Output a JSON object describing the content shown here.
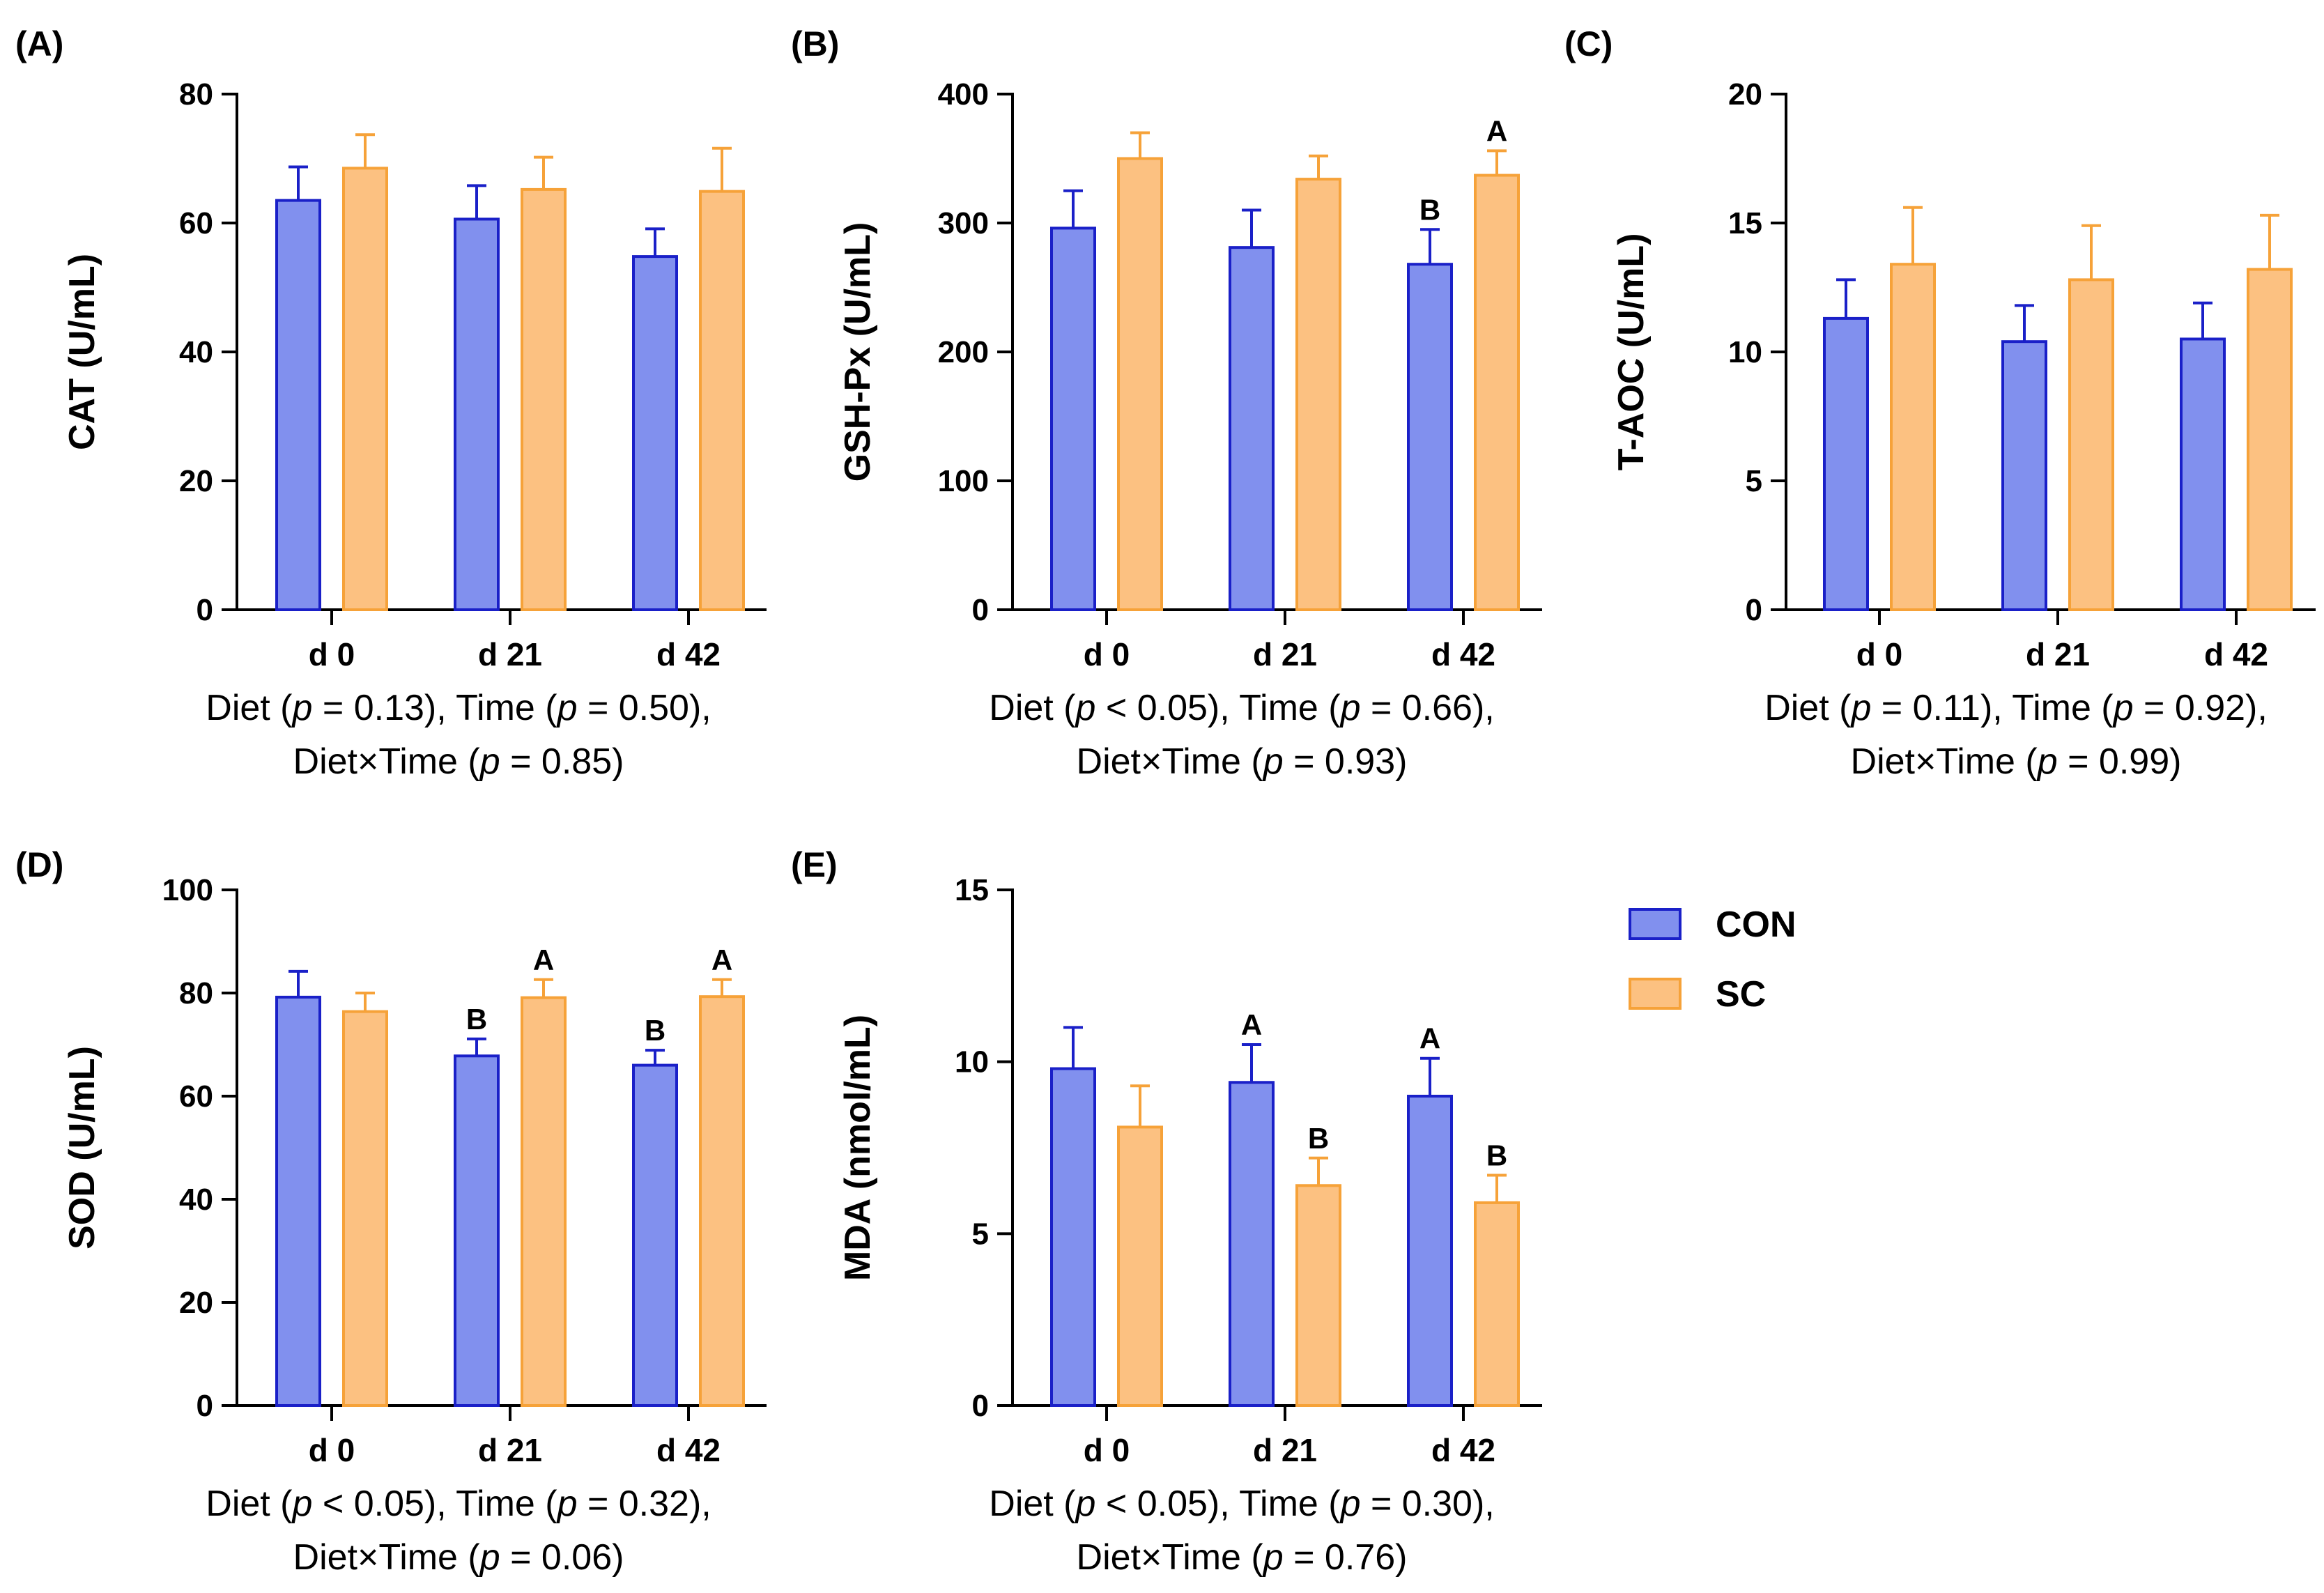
{
  "chart_data": [
    {
      "id": "A",
      "panel_label": "(A)",
      "type": "bar",
      "ylabel": "CAT (U/mL)",
      "ylim": [
        0,
        80
      ],
      "yticks": [
        0,
        20,
        40,
        60,
        80
      ],
      "categories": [
        "d 0",
        "d 21",
        "d 42"
      ],
      "series": [
        {
          "name": "CON",
          "values": [
            63.5,
            60.6,
            54.8
          ],
          "errors": [
            5.2,
            5.2,
            4.3
          ],
          "letters": [
            "",
            "",
            ""
          ]
        },
        {
          "name": "SC",
          "values": [
            68.5,
            65.2,
            64.9
          ],
          "errors": [
            5.2,
            5.0,
            6.7
          ],
          "letters": [
            "",
            "",
            ""
          ]
        }
      ],
      "note_line1": [
        "Diet (",
        "p",
        " = 0.13), Time (",
        "p",
        " = 0.50),"
      ],
      "note_line2": [
        "Diet×Time (",
        "p",
        " = 0.85)"
      ]
    },
    {
      "id": "B",
      "panel_label": "(B)",
      "type": "bar",
      "ylabel": "GSH-Px (U/mL)",
      "ylim": [
        0,
        400
      ],
      "yticks": [
        0,
        100,
        200,
        300,
        400
      ],
      "categories": [
        "d 0",
        "d 21",
        "d 42"
      ],
      "series": [
        {
          "name": "CON",
          "values": [
            296,
            281,
            268
          ],
          "errors": [
            29,
            29,
            27
          ],
          "letters": [
            "",
            "",
            "B"
          ]
        },
        {
          "name": "SC",
          "values": [
            350,
            334,
            337
          ],
          "errors": [
            20,
            18,
            19
          ],
          "letters": [
            "",
            "",
            "A"
          ]
        }
      ],
      "note_line1": [
        "Diet (",
        "p",
        " < 0.05), Time (",
        "p",
        " = 0.66),"
      ],
      "note_line2": [
        "Diet×Time (",
        "p",
        " = 0.93)"
      ]
    },
    {
      "id": "C",
      "panel_label": "(C)",
      "type": "bar",
      "ylabel": "T-AOC (U/mL)",
      "ylim": [
        0,
        20
      ],
      "yticks": [
        0,
        5,
        10,
        15,
        20
      ],
      "categories": [
        "d 0",
        "d 21",
        "d 42"
      ],
      "series": [
        {
          "name": "CON",
          "values": [
            11.3,
            10.4,
            10.5
          ],
          "errors": [
            1.5,
            1.4,
            1.4
          ],
          "letters": [
            "",
            "",
            ""
          ]
        },
        {
          "name": "SC",
          "values": [
            13.4,
            12.8,
            13.2
          ],
          "errors": [
            2.2,
            2.1,
            2.1
          ],
          "letters": [
            "",
            "",
            ""
          ]
        }
      ],
      "note_line1": [
        "Diet (",
        "p",
        " = 0.11), Time (",
        "p",
        " = 0.92),"
      ],
      "note_line2": [
        "Diet×Time (",
        "p",
        " = 0.99)"
      ]
    },
    {
      "id": "D",
      "panel_label": "(D)",
      "type": "bar",
      "ylabel": "SOD (U/mL)",
      "ylim": [
        0,
        100
      ],
      "yticks": [
        0,
        20,
        40,
        60,
        80,
        100
      ],
      "categories": [
        "d 0",
        "d 21",
        "d 42"
      ],
      "series": [
        {
          "name": "CON",
          "values": [
            79.2,
            67.8,
            66.0
          ],
          "errors": [
            5.0,
            3.3,
            2.9
          ],
          "letters": [
            "",
            "B",
            "B"
          ]
        },
        {
          "name": "SC",
          "values": [
            76.4,
            79.1,
            79.3
          ],
          "errors": [
            3.6,
            3.5,
            3.3
          ],
          "letters": [
            "",
            "A",
            "A"
          ]
        }
      ],
      "note_line1": [
        "Diet (",
        "p",
        " < 0.05), Time (",
        "p",
        " = 0.32),"
      ],
      "note_line2": [
        "Diet×Time (",
        "p",
        " = 0.06)"
      ]
    },
    {
      "id": "E",
      "panel_label": "(E)",
      "type": "bar",
      "ylabel": "MDA (nmol/mL)",
      "ylim": [
        0,
        15
      ],
      "yticks": [
        0,
        5,
        10,
        15
      ],
      "categories": [
        "d 0",
        "d 21",
        "d 42"
      ],
      "series": [
        {
          "name": "CON",
          "values": [
            9.8,
            9.4,
            9.0
          ],
          "errors": [
            1.2,
            1.1,
            1.1
          ],
          "letters": [
            "",
            "A",
            "A"
          ]
        },
        {
          "name": "SC",
          "values": [
            8.1,
            6.4,
            5.9
          ],
          "errors": [
            1.2,
            0.8,
            0.8
          ],
          "letters": [
            "",
            "B",
            "B"
          ]
        }
      ],
      "note_line1": [
        "Diet (",
        "p",
        " < 0.05), Time (",
        "p",
        " = 0.30),"
      ],
      "note_line2": [
        "Diet×Time (",
        "p",
        " = 0.76)"
      ]
    }
  ],
  "legend": {
    "items": [
      {
        "label": "CON",
        "fill": "#8190EE",
        "stroke": "#1A20C8"
      },
      {
        "label": "SC",
        "fill": "#FCC181",
        "stroke": "#F6A239"
      }
    ]
  },
  "colors": {
    "con_fill": "#8190EE",
    "con_stroke": "#1A20C8",
    "sc_fill": "#FCC181",
    "sc_stroke": "#F6A239",
    "axis": "#000000"
  }
}
